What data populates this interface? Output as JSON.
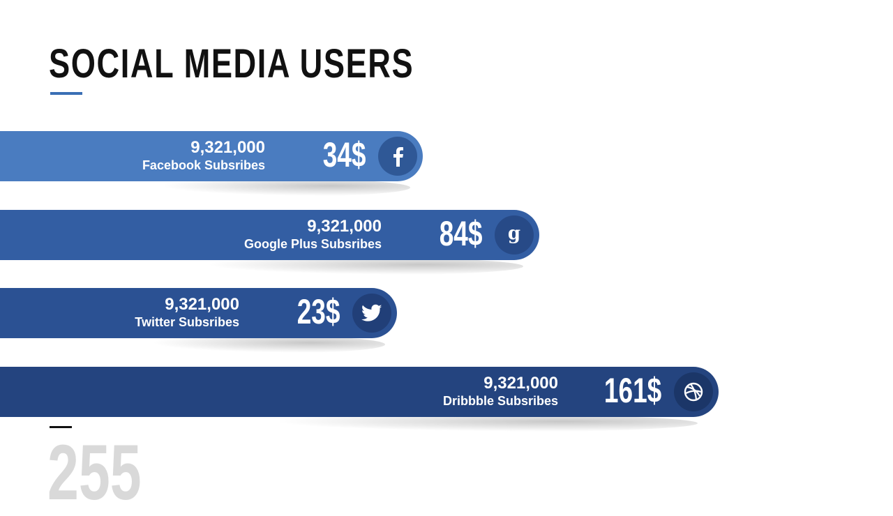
{
  "title": "SOCIAL MEDIA USERS",
  "footer_number": "255",
  "chart_data": {
    "type": "bar",
    "orientation": "horizontal",
    "categories": [
      "Facebook Subsribes",
      "Google Plus Subsribes",
      "Twitter Subsribes",
      "Dribbble Subsribes"
    ],
    "values": [
      34,
      84,
      23,
      161
    ],
    "value_labels": [
      "34$",
      "84$",
      "23$",
      "161$"
    ],
    "counts": [
      "9,321,000",
      "9,321,000",
      "9,321,000",
      "9,321,000"
    ],
    "icons": [
      "facebook-icon",
      "google-plus-icon",
      "twitter-icon",
      "dribbble-icon"
    ],
    "colors": [
      "#4a7cc0",
      "#335ea3",
      "#2b5193",
      "#24447f"
    ],
    "icon_colors": [
      "#2f5896",
      "#274a87",
      "#213f78",
      "#1b3668"
    ],
    "grid": false,
    "legend": "none"
  }
}
